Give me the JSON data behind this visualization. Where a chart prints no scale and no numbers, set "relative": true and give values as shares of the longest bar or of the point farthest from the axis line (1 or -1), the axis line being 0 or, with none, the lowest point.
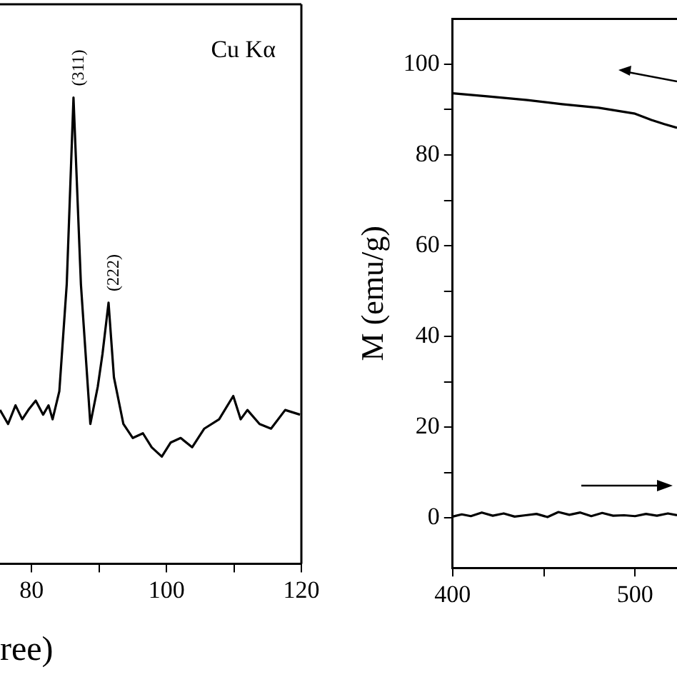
{
  "chart_data": [
    {
      "type": "line",
      "xlabel": "ree)",
      "relative": true,
      "tick_labels": "x",
      "xlim": [
        75.3,
        120
      ],
      "xticks": [
        80,
        {
          "value": 90,
          "label": null
        },
        100,
        {
          "value": 110,
          "label": null
        },
        120
      ],
      "annotations": [
        "Cu Kα",
        {
          "text": "(311)",
          "x": 86.2,
          "y": 1.0
        },
        {
          "text": "(222)",
          "x": 91.4,
          "y": 0.56
        }
      ],
      "series": [
        {
          "color": "#000000",
          "x": [
            75.3,
            76.5,
            77.6,
            78.6,
            79.5,
            80.6,
            81.7,
            82.5,
            83.1,
            84.1,
            85.2,
            86.2,
            87.3,
            88.7,
            89.8,
            90.5,
            91.4,
            92.2,
            93.6,
            95.0,
            96.5,
            97.8,
            99.3,
            100.6,
            102.1,
            103.8,
            105.6,
            107.8,
            109.9,
            111.0,
            112.0,
            113.8,
            115.5,
            117.6,
            119.8
          ],
          "values": [
            0.33,
            0.3,
            0.34,
            0.31,
            0.33,
            0.35,
            0.32,
            0.34,
            0.31,
            0.37,
            0.6,
            1.0,
            0.6,
            0.3,
            0.38,
            0.45,
            0.56,
            0.4,
            0.3,
            0.27,
            0.28,
            0.25,
            0.23,
            0.26,
            0.27,
            0.25,
            0.29,
            0.31,
            0.36,
            0.31,
            0.33,
            0.3,
            0.29,
            0.33,
            0.32
          ]
        }
      ]
    },
    {
      "type": "line",
      "ylabel": "M (emu/g)",
      "xlim": [
        400,
        523
      ],
      "xticks": [
        400,
        {
          "value": 450,
          "label": null
        },
        500
      ],
      "ylim": [
        -11,
        110
      ],
      "yticks": [
        0,
        {
          "value": 10,
          "label": null
        },
        20,
        {
          "value": 30,
          "label": null
        },
        40,
        {
          "value": 50,
          "label": null
        },
        60,
        {
          "value": 70,
          "label": null
        },
        80,
        {
          "value": 90,
          "label": null
        },
        100
      ],
      "series": [
        {
          "color": "#000000",
          "x": [
            400,
            420,
            441,
            460,
            480,
            500,
            509,
            516,
            523
          ],
          "values": [
            93.6,
            92.9,
            92.1,
            91.2,
            90.4,
            89.1,
            87.7,
            86.8,
            86.0
          ]
        },
        {
          "color": "#000000",
          "x": [
            400,
            405,
            410,
            416,
            422,
            428,
            434,
            440,
            446,
            452,
            458,
            464,
            470,
            476,
            482,
            488,
            494,
            500,
            506,
            512,
            518,
            523
          ],
          "values": [
            0.3,
            0.8,
            0.4,
            1.2,
            0.5,
            1.0,
            0.3,
            0.6,
            0.9,
            0.2,
            1.3,
            0.7,
            1.2,
            0.4,
            1.1,
            0.5,
            0.6,
            0.4,
            0.9,
            0.5,
            1.0,
            0.6
          ]
        }
      ]
    }
  ]
}
